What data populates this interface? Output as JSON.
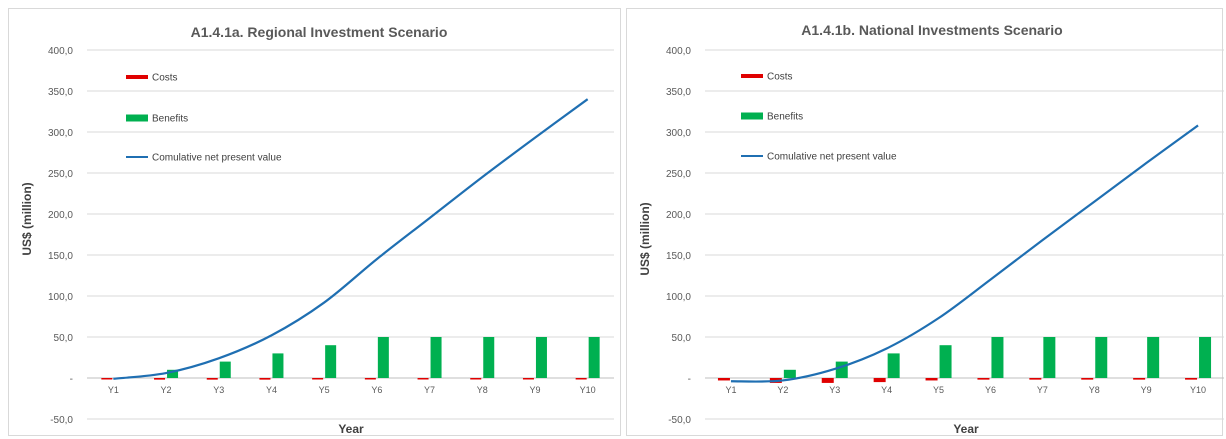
{
  "chart_data": [
    {
      "type": "bar",
      "title": "A1.4.1a. Regional Investment Scenario",
      "xlabel": "Year",
      "ylabel": "US$ (million)",
      "ylim": [
        -50,
        400
      ],
      "yticks": [
        "400,0",
        "350,0",
        "300,0",
        "250,0",
        "200,0",
        "150,0",
        "100,0",
        "50,0",
        "-",
        "-50,0"
      ],
      "categories": [
        "Y1",
        "Y2",
        "Y3",
        "Y4",
        "Y5",
        "Y6",
        "Y7",
        "Y8",
        "Y9",
        "Y10"
      ],
      "grid": true,
      "legend_position": "top-left",
      "series": [
        {
          "name": "Costs",
          "kind": "bar",
          "color": "#e00000",
          "values": [
            -0.5,
            -2,
            -2,
            -2,
            -1,
            -0.5,
            -0.5,
            -0.5,
            -0.5,
            -0.5
          ]
        },
        {
          "name": "Benefits",
          "kind": "bar",
          "color": "#00b050",
          "values": [
            0,
            10,
            20,
            30,
            40,
            50,
            50,
            50,
            50,
            50
          ]
        },
        {
          "name": "Comulative net present value",
          "kind": "line",
          "color": "#1f6fb2",
          "values": [
            -1,
            6,
            24,
            52,
            92,
            145,
            195,
            245,
            293,
            340
          ]
        }
      ]
    },
    {
      "type": "bar",
      "title": "A1.4.1b. National Investments Scenario",
      "xlabel": "Year",
      "ylabel": "US$ (million)",
      "ylim": [
        -50,
        400
      ],
      "yticks": [
        "400,0",
        "350,0",
        "300,0",
        "250,0",
        "200,0",
        "150,0",
        "100,0",
        "50,0",
        "-",
        "-50,0"
      ],
      "categories": [
        "Y1",
        "Y2",
        "Y3",
        "Y4",
        "Y5",
        "Y6",
        "Y7",
        "Y8",
        "Y9",
        "Y10"
      ],
      "grid": true,
      "legend_position": "top-left",
      "series": [
        {
          "name": "Costs",
          "kind": "bar",
          "color": "#e00000",
          "values": [
            -3,
            -6,
            -6,
            -5,
            -3,
            -2,
            -2,
            -2,
            -2,
            -2
          ]
        },
        {
          "name": "Benefits",
          "kind": "bar",
          "color": "#00b050",
          "values": [
            0,
            10,
            20,
            30,
            40,
            50,
            50,
            50,
            50,
            50
          ]
        },
        {
          "name": "Comulative net present value",
          "kind": "line",
          "color": "#1f6fb2",
          "values": [
            -4,
            -3,
            11,
            36,
            73,
            120,
            168,
            215,
            262,
            308
          ]
        }
      ]
    }
  ]
}
